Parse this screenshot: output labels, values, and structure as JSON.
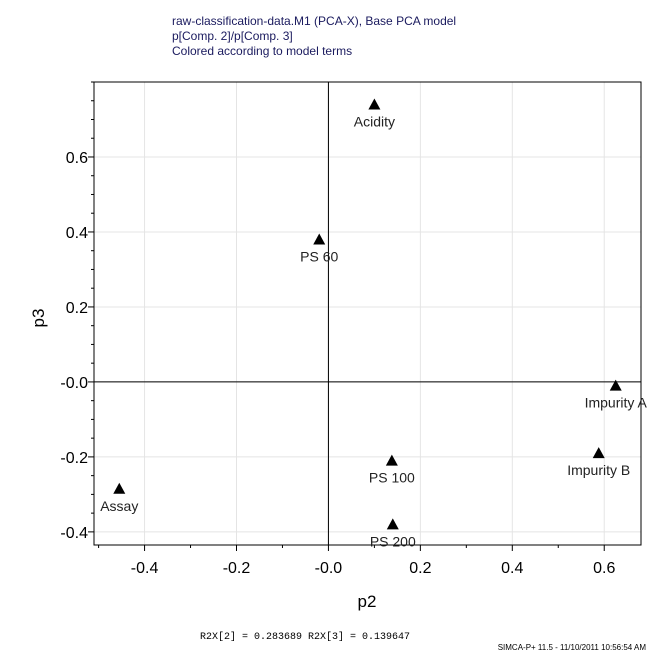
{
  "header": {
    "line1": "raw-classification-data.M1 (PCA-X), Base PCA model",
    "line2": "p[Comp. 2]/p[Comp. 3]",
    "line3": "Colored according to model terms"
  },
  "footer": {
    "stats": "R2X[2] = 0.283689  R2X[3] = 0.139647",
    "credit": "SIMCA-P+ 11.5 - 11/10/2011 10:56:54 AM"
  },
  "colors": {
    "marker": "#000000",
    "grid": "#e4e4e4",
    "axis": "#000000"
  },
  "chart_data": {
    "type": "scatter",
    "xlabel": "p2",
    "ylabel": "p3",
    "xlim": [
      -0.51,
      0.68
    ],
    "ylim": [
      -0.435,
      0.8
    ],
    "xticks": [
      -0.4,
      -0.2,
      0.0,
      0.2,
      0.4,
      0.6
    ],
    "xtick_labels": [
      "-0.4",
      "-0.2",
      "-0.0",
      "0.2",
      "0.4",
      "0.6"
    ],
    "yticks": [
      -0.4,
      -0.2,
      0.0,
      0.2,
      0.4,
      0.6
    ],
    "ytick_labels": [
      "-0.4",
      "-0.2",
      "-0.0",
      "0.2",
      "0.4",
      "0.6"
    ],
    "grid": true,
    "marker": "triangle",
    "points": [
      {
        "label": "Acidity",
        "x": 0.1,
        "y": 0.74
      },
      {
        "label": "PS 60",
        "x": -0.02,
        "y": 0.38
      },
      {
        "label": "Impurity A",
        "x": 0.625,
        "y": -0.01
      },
      {
        "label": "PS 100",
        "x": 0.138,
        "y": -0.21
      },
      {
        "label": "Impurity B",
        "x": 0.588,
        "y": -0.19
      },
      {
        "label": "Assay",
        "x": -0.455,
        "y": -0.285
      },
      {
        "label": "PS 200",
        "x": 0.14,
        "y": -0.38
      }
    ]
  }
}
